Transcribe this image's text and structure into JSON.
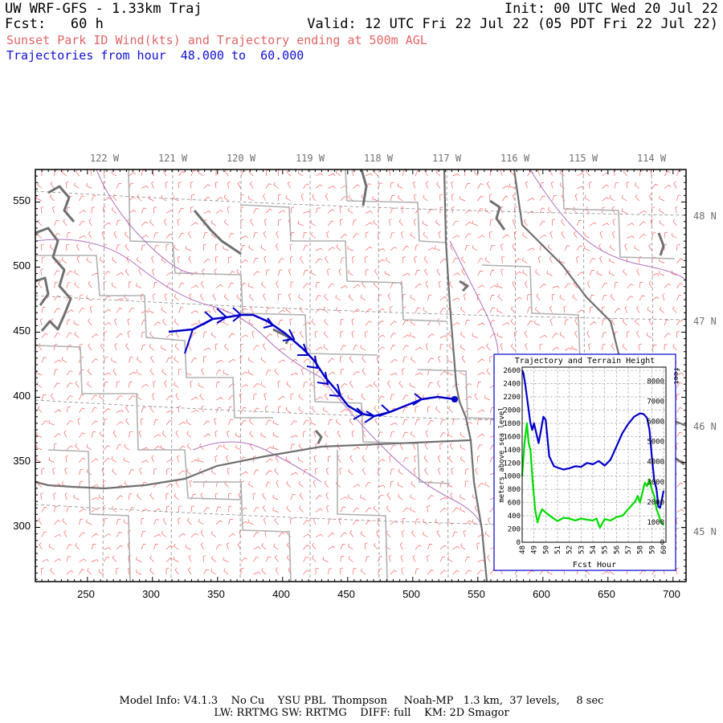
{
  "header": {
    "title": "UW WRF-GFS - 1.33km Traj",
    "forecast": "Fcst:   60 h",
    "init": "Init: 00 UTC Wed 20 Jul 22",
    "valid": "Valid: 12 UTC Fri 22 Jul 22 (05 PDT Fri 22 Jul 22)",
    "subtitle": "Sunset Park ID Wind(kts) and Trajectory ending at 500m AGL",
    "trajectory_range": "Trajectories from hour  48.000 to  60.000"
  },
  "map": {
    "longitude_labels": [
      "122 W",
      "121 W",
      "120 W",
      "119 W",
      "118 W",
      "117 W",
      "116 W",
      "115 W",
      "114 W"
    ],
    "latitude_labels": [
      "48 N",
      "47 N",
      "46 N",
      "45 N"
    ],
    "x_ticks": [
      "250",
      "300",
      "350",
      "400",
      "450",
      "500",
      "550",
      "600",
      "650",
      "700"
    ],
    "y_ticks": [
      "550",
      "500",
      "450",
      "400",
      "350",
      "300"
    ],
    "colors": {
      "trajectory": "#0000cc",
      "wind_barbs": "#ff6060",
      "terrain": "#00dd00",
      "coast": "#707070",
      "borders": "#b0b0b0",
      "rivers": "#b070c0"
    }
  },
  "inset": {
    "title": "Trajectory and Terrain Height",
    "ylabel_left": "meters above sea level",
    "ylabel_right": "feet",
    "xlabel": "Fcst Hour"
  },
  "chart_data": {
    "type": "line",
    "title": "Trajectory and Terrain Height",
    "xlabel": "Fcst Hour",
    "ylabel": "meters above sea level",
    "y2label": "feet",
    "x_tick_labels": [
      "48",
      "49",
      "50",
      "51",
      "52",
      "53",
      "54",
      "55",
      "56",
      "57",
      "58",
      "59",
      "60"
    ],
    "y_tick_labels": [
      "0",
      "200",
      "400",
      "600",
      "800",
      "1000",
      "1200",
      "1400",
      "1600",
      "1800",
      "2000",
      "2200",
      "2400",
      "2600"
    ],
    "y2_tick_labels": [
      "0",
      "1000",
      "2000",
      "3000",
      "4000",
      "5000",
      "6000",
      "7000",
      "8000"
    ],
    "xlim": [
      48,
      60.2
    ],
    "ylim": [
      0,
      2650
    ],
    "grid": true,
    "series": [
      {
        "color": "#0000cc",
        "x": [
          48,
          48.1,
          48.25,
          48.4,
          48.55,
          48.7,
          48.85,
          49.0,
          49.2,
          49.4,
          49.6,
          49.8,
          50.0,
          50.3,
          50.7,
          51.0,
          51.5,
          52.0,
          52.5,
          53.0,
          53.5,
          54.0,
          54.5,
          55.0,
          55.5,
          56.0,
          56.5,
          57.0,
          57.5,
          58.0,
          58.3,
          58.6,
          58.8,
          59.0,
          59.2,
          59.4,
          59.55,
          59.7,
          59.85,
          60.0
        ],
        "y": [
          2600,
          2560,
          2400,
          2200,
          2000,
          1800,
          1700,
          1800,
          1650,
          1500,
          1700,
          1900,
          1850,
          1300,
          1150,
          1130,
          1100,
          1120,
          1150,
          1140,
          1200,
          1180,
          1230,
          1160,
          1250,
          1450,
          1650,
          1790,
          1900,
          1950,
          1940,
          1880,
          1700,
          1300,
          950,
          800,
          540,
          520,
          650,
          780
        ]
      },
      {
        "color": "#00dd00",
        "x": [
          48,
          48.2,
          48.4,
          48.55,
          48.7,
          48.9,
          49.1,
          49.3,
          49.5,
          49.7,
          50.0,
          50.5,
          51.0,
          51.5,
          52.0,
          52.5,
          53.0,
          53.5,
          54.0,
          54.3,
          54.6,
          55.0,
          55.5,
          56.0,
          56.5,
          57.0,
          57.3,
          57.6,
          57.8,
          58.0,
          58.2,
          58.4,
          58.6,
          58.8,
          59.0,
          59.2,
          59.4,
          59.6,
          59.8,
          60.0
        ],
        "y": [
          1000,
          1500,
          1800,
          1500,
          1400,
          900,
          500,
          300,
          420,
          500,
          450,
          380,
          320,
          370,
          360,
          330,
          360,
          340,
          330,
          360,
          220,
          350,
          330,
          380,
          400,
          500,
          560,
          620,
          700,
          600,
          750,
          900,
          850,
          950,
          800,
          700,
          500,
          400,
          300,
          260
        ]
      }
    ]
  },
  "footer": {
    "line1": "Model Info: V4.1.3    No Cu    YSU PBL  Thompson     Noah-MP   1.3 km,  37 levels,     8 sec",
    "line2": "LW: RRTMG SW: RRTMG    DIFF: full    KM: 2D Smagor"
  }
}
